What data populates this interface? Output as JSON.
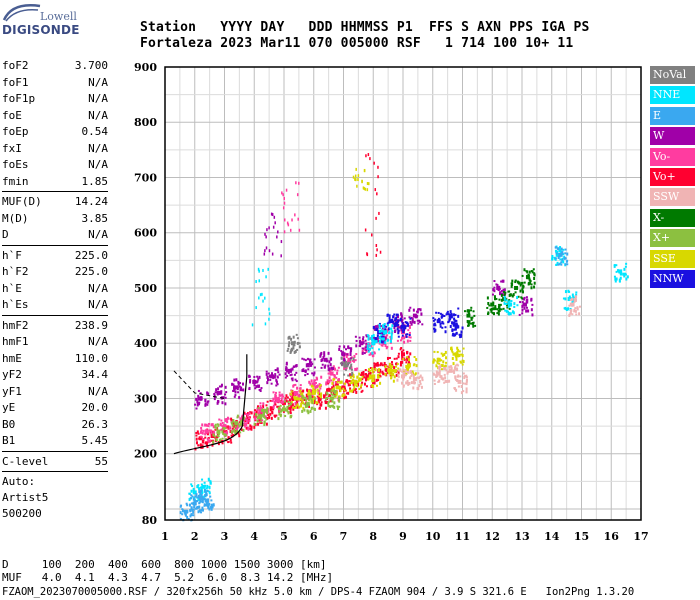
{
  "logo": {
    "line1": "Lowell",
    "line2": "DIGISONDE"
  },
  "header": {
    "line1": "Station   YYYY DAY   DDD HHMMSS P1  FFS S AXN PPS IGA PS",
    "line2": "Fortaleza 2023 Mar11 070 005000 RSF   1 714 100 10+ 11"
  },
  "params": {
    "g1": [
      {
        "k": "foF2",
        "v": "3.700"
      },
      {
        "k": "foF1",
        "v": "N/A"
      },
      {
        "k": "foF1p",
        "v": "N/A"
      },
      {
        "k": "foE",
        "v": "N/A"
      },
      {
        "k": "foEp",
        "v": "0.54"
      },
      {
        "k": "fxI",
        "v": "N/A"
      },
      {
        "k": "foEs",
        "v": "N/A"
      },
      {
        "k": "fmin",
        "v": "1.85"
      }
    ],
    "g2": [
      {
        "k": "MUF(D)",
        "v": "14.24"
      },
      {
        "k": "M(D)",
        "v": "3.85"
      },
      {
        "k": "D",
        "v": "N/A"
      }
    ],
    "g3": [
      {
        "k": "h`F",
        "v": "225.0"
      },
      {
        "k": "h`F2",
        "v": "225.0"
      },
      {
        "k": "h`E",
        "v": "N/A"
      },
      {
        "k": "h`Es",
        "v": "N/A"
      }
    ],
    "g4": [
      {
        "k": "hmF2",
        "v": "238.9"
      },
      {
        "k": "hmF1",
        "v": "N/A"
      },
      {
        "k": "hmE",
        "v": "110.0"
      },
      {
        "k": "yF2",
        "v": "34.4"
      },
      {
        "k": "yF1",
        "v": "N/A"
      },
      {
        "k": "yE",
        "v": "20.0"
      },
      {
        "k": "B0",
        "v": "26.3"
      },
      {
        "k": "B1",
        "v": "5.45"
      }
    ],
    "g5": [
      {
        "k": "C-level",
        "v": "55"
      }
    ],
    "auto": [
      "Auto:",
      "Artist5",
      "500200"
    ]
  },
  "legend": [
    {
      "label": "NoVal",
      "color": "#808080",
      "text": "#ffffff"
    },
    {
      "label": "NNE",
      "color": "#00e6ff",
      "text": "#ffffff"
    },
    {
      "label": "E",
      "color": "#3aa8f0",
      "text": "#ffffff"
    },
    {
      "label": "W",
      "color": "#a000a8",
      "text": "#ffffff"
    },
    {
      "label": "Vo-",
      "color": "#ff3ca0",
      "text": "#ffffff"
    },
    {
      "label": "Vo+",
      "color": "#ff0030",
      "text": "#ffffff"
    },
    {
      "label": "SSW",
      "color": "#f0b4b4",
      "text": "#ffffff"
    },
    {
      "label": "X-",
      "color": "#007a00",
      "text": "#ffffff"
    },
    {
      "label": "X+",
      "color": "#8cc040",
      "text": "#ffffff"
    },
    {
      "label": "SSE",
      "color": "#d8d800",
      "text": "#ffffff"
    },
    {
      "label": "NNW",
      "color": "#1a10e0",
      "text": "#ffffff"
    }
  ],
  "footer": {
    "line1": "D     100  200  400  600  800 1000 1500 3000 [km]",
    "line2": "MUF   4.0  4.1  4.3  4.7  5.2  6.0  8.3 14.2 [MHz]",
    "line3": "FZAOM_2023070005000.RSF / 320fx256h 50 kHz 5.0 km / DPS-4 FZAOM 904 / 3.9 S 321.6 E   Ion2Png 1.3.20"
  },
  "chart_data": {
    "type": "scatter",
    "xlim": [
      1,
      17
    ],
    "ylim": [
      80,
      900
    ],
    "xticks": [
      "1",
      "2",
      "3",
      "4",
      "5",
      "6",
      "7",
      "8",
      "9",
      "10",
      "11",
      "12",
      "13",
      "14",
      "15",
      "16",
      "17"
    ],
    "yticks": [
      "80",
      "200",
      "300",
      "400",
      "500",
      "600",
      "700",
      "800",
      "900"
    ],
    "grid": true,
    "description_series": [
      {
        "name": "Vo+",
        "color": "#ff0030",
        "x": [
          2.2,
          2.6,
          3.0,
          3.4,
          3.8,
          4.2,
          4.6,
          5.0,
          5.4,
          5.8,
          6.2,
          6.6,
          7.0,
          7.4,
          7.8,
          8.2,
          8.6,
          9.0
        ],
        "y": [
          228,
          232,
          238,
          250,
          262,
          272,
          282,
          292,
          300,
          305,
          300,
          315,
          320,
          330,
          340,
          350,
          360,
          380
        ]
      },
      {
        "name": "Vo-",
        "color": "#ff3ca0",
        "x": [
          2.4,
          3.0,
          3.6,
          4.2,
          4.8,
          5.4,
          6.0,
          6.6,
          7.2,
          7.8,
          8.4,
          9.0
        ],
        "y": [
          240,
          250,
          262,
          278,
          296,
          310,
          325,
          345,
          370,
          395,
          410,
          420
        ]
      },
      {
        "name": "W",
        "color": "#a000a8",
        "x": [
          2.2,
          2.8,
          3.4,
          4.0,
          4.6,
          5.2,
          5.8,
          6.4,
          7.0,
          7.6,
          8.2,
          8.8,
          9.4,
          12.2,
          13.1
        ],
        "y": [
          300,
          310,
          320,
          330,
          340,
          350,
          360,
          370,
          380,
          400,
          420,
          440,
          450,
          500,
          470
        ]
      },
      {
        "name": "NNW",
        "color": "#1a10e0",
        "x": [
          8.2,
          8.6,
          9.0,
          10.2,
          10.6,
          10.8
        ],
        "y": [
          420,
          440,
          430,
          440,
          450,
          430
        ]
      },
      {
        "name": "X-",
        "color": "#007a00",
        "x": [
          11.2,
          12.0,
          12.4,
          12.8,
          13.2
        ],
        "y": [
          450,
          470,
          480,
          500,
          520
        ]
      },
      {
        "name": "SSE",
        "color": "#d8d800",
        "x": [
          5.4,
          6.0,
          6.8,
          7.4,
          8.0,
          8.6,
          9.2,
          10.2,
          10.8
        ],
        "y": [
          300,
          310,
          320,
          330,
          340,
          350,
          360,
          370,
          380
        ]
      },
      {
        "name": "X+",
        "color": "#8cc040",
        "x": [
          2.8,
          3.4,
          4.2,
          5.0,
          5.8,
          6.6
        ],
        "y": [
          240,
          255,
          268,
          280,
          290,
          300
        ]
      },
      {
        "name": "NNE",
        "color": "#00e6ff",
        "x": [
          2.0,
          2.3,
          8.0,
          8.4,
          12.6,
          14.2,
          14.6,
          16.3
        ],
        "y": [
          130,
          140,
          400,
          420,
          470,
          560,
          480,
          530
        ]
      },
      {
        "name": "E",
        "color": "#3aa8f0",
        "x": [
          1.7,
          2.0,
          2.2,
          2.4,
          14.3
        ],
        "y": [
          95,
          110,
          120,
          115,
          560
        ]
      },
      {
        "name": "SSW",
        "color": "#f0b4b4",
        "x": [
          9.0,
          9.4,
          10.2,
          10.6,
          10.9,
          14.7
        ],
        "y": [
          340,
          335,
          345,
          350,
          330,
          470
        ]
      },
      {
        "name": "NoVal",
        "color": "#808080",
        "x": [
          5.3,
          7.1
        ],
        "y": [
          400,
          360
        ]
      }
    ]
  }
}
